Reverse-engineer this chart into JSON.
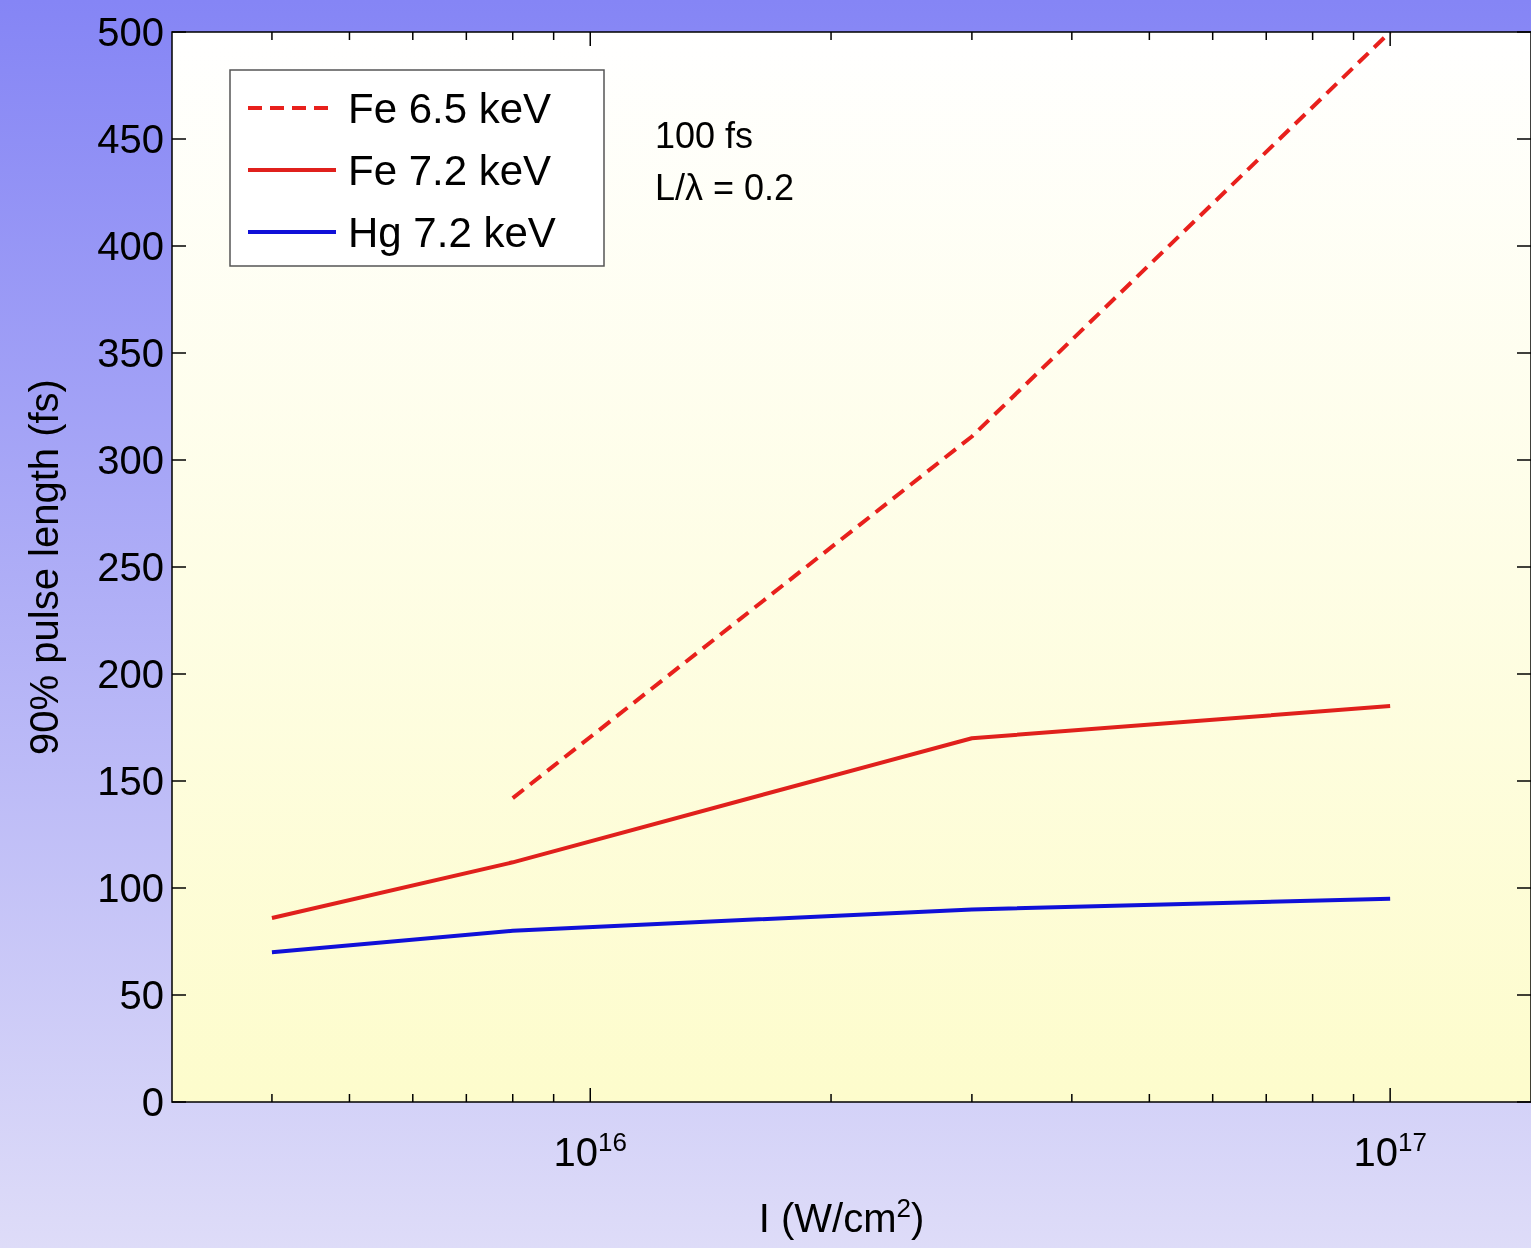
{
  "chart_data": {
    "type": "line",
    "xlabel": "I (W/cm$^{2}$)",
    "ylabel": "90% pulse length (fs)",
    "log": "x",
    "xlim": [
      3000000000000000.0,
      1.5e+17
    ],
    "ylim": [
      0,
      500
    ],
    "xticks": [
      {
        "value": 4000000000000000.0,
        "label": null
      },
      {
        "value": 5000000000000000.0,
        "label": null
      },
      {
        "value": 6000000000000000.0,
        "label": null
      },
      {
        "value": 7000000000000000.0,
        "label": null
      },
      {
        "value": 8000000000000000.0,
        "label": null
      },
      {
        "value": 9000000000000000.0,
        "label": null
      },
      {
        "value": 1e+16,
        "label": "10$^{16}$"
      },
      {
        "value": 2e+16,
        "label": null
      },
      {
        "value": 3e+16,
        "label": null
      },
      {
        "value": 4e+16,
        "label": null
      },
      {
        "value": 5e+16,
        "label": null
      },
      {
        "value": 6e+16,
        "label": null
      },
      {
        "value": 7e+16,
        "label": null
      },
      {
        "value": 8e+16,
        "label": null
      },
      {
        "value": 9e+16,
        "label": null
      },
      {
        "value": 1e+17,
        "label": "10$^{17}$"
      }
    ],
    "yticks": [
      0,
      50,
      100,
      150,
      200,
      250,
      300,
      350,
      400,
      450,
      500
    ],
    "series": [
      {
        "name": "Fe 6.5 keV",
        "color": "#e8201c",
        "line_style": "dashed",
        "x": [
          8000000000000000.0,
          3e+16,
          1e+17
        ],
        "values": [
          142,
          311,
          500
        ]
      },
      {
        "name": "Fe 7.2 keV",
        "color": "#e0201c",
        "line_style": "solid",
        "x": [
          4000000000000000.0,
          8000000000000000.0,
          3e+16,
          1e+17
        ],
        "values": [
          86,
          112,
          170,
          185
        ]
      },
      {
        "name": "Hg 7.2 keV",
        "color": "#1010d8",
        "line_style": "solid",
        "x": [
          4000000000000000.0,
          8000000000000000.0,
          3e+16,
          1e+17
        ],
        "values": [
          70,
          80,
          90,
          95
        ]
      }
    ],
    "legend": "top left",
    "grid": false,
    "annotations": [
      "100 fs",
      "L/λ = 0.2"
    ]
  }
}
